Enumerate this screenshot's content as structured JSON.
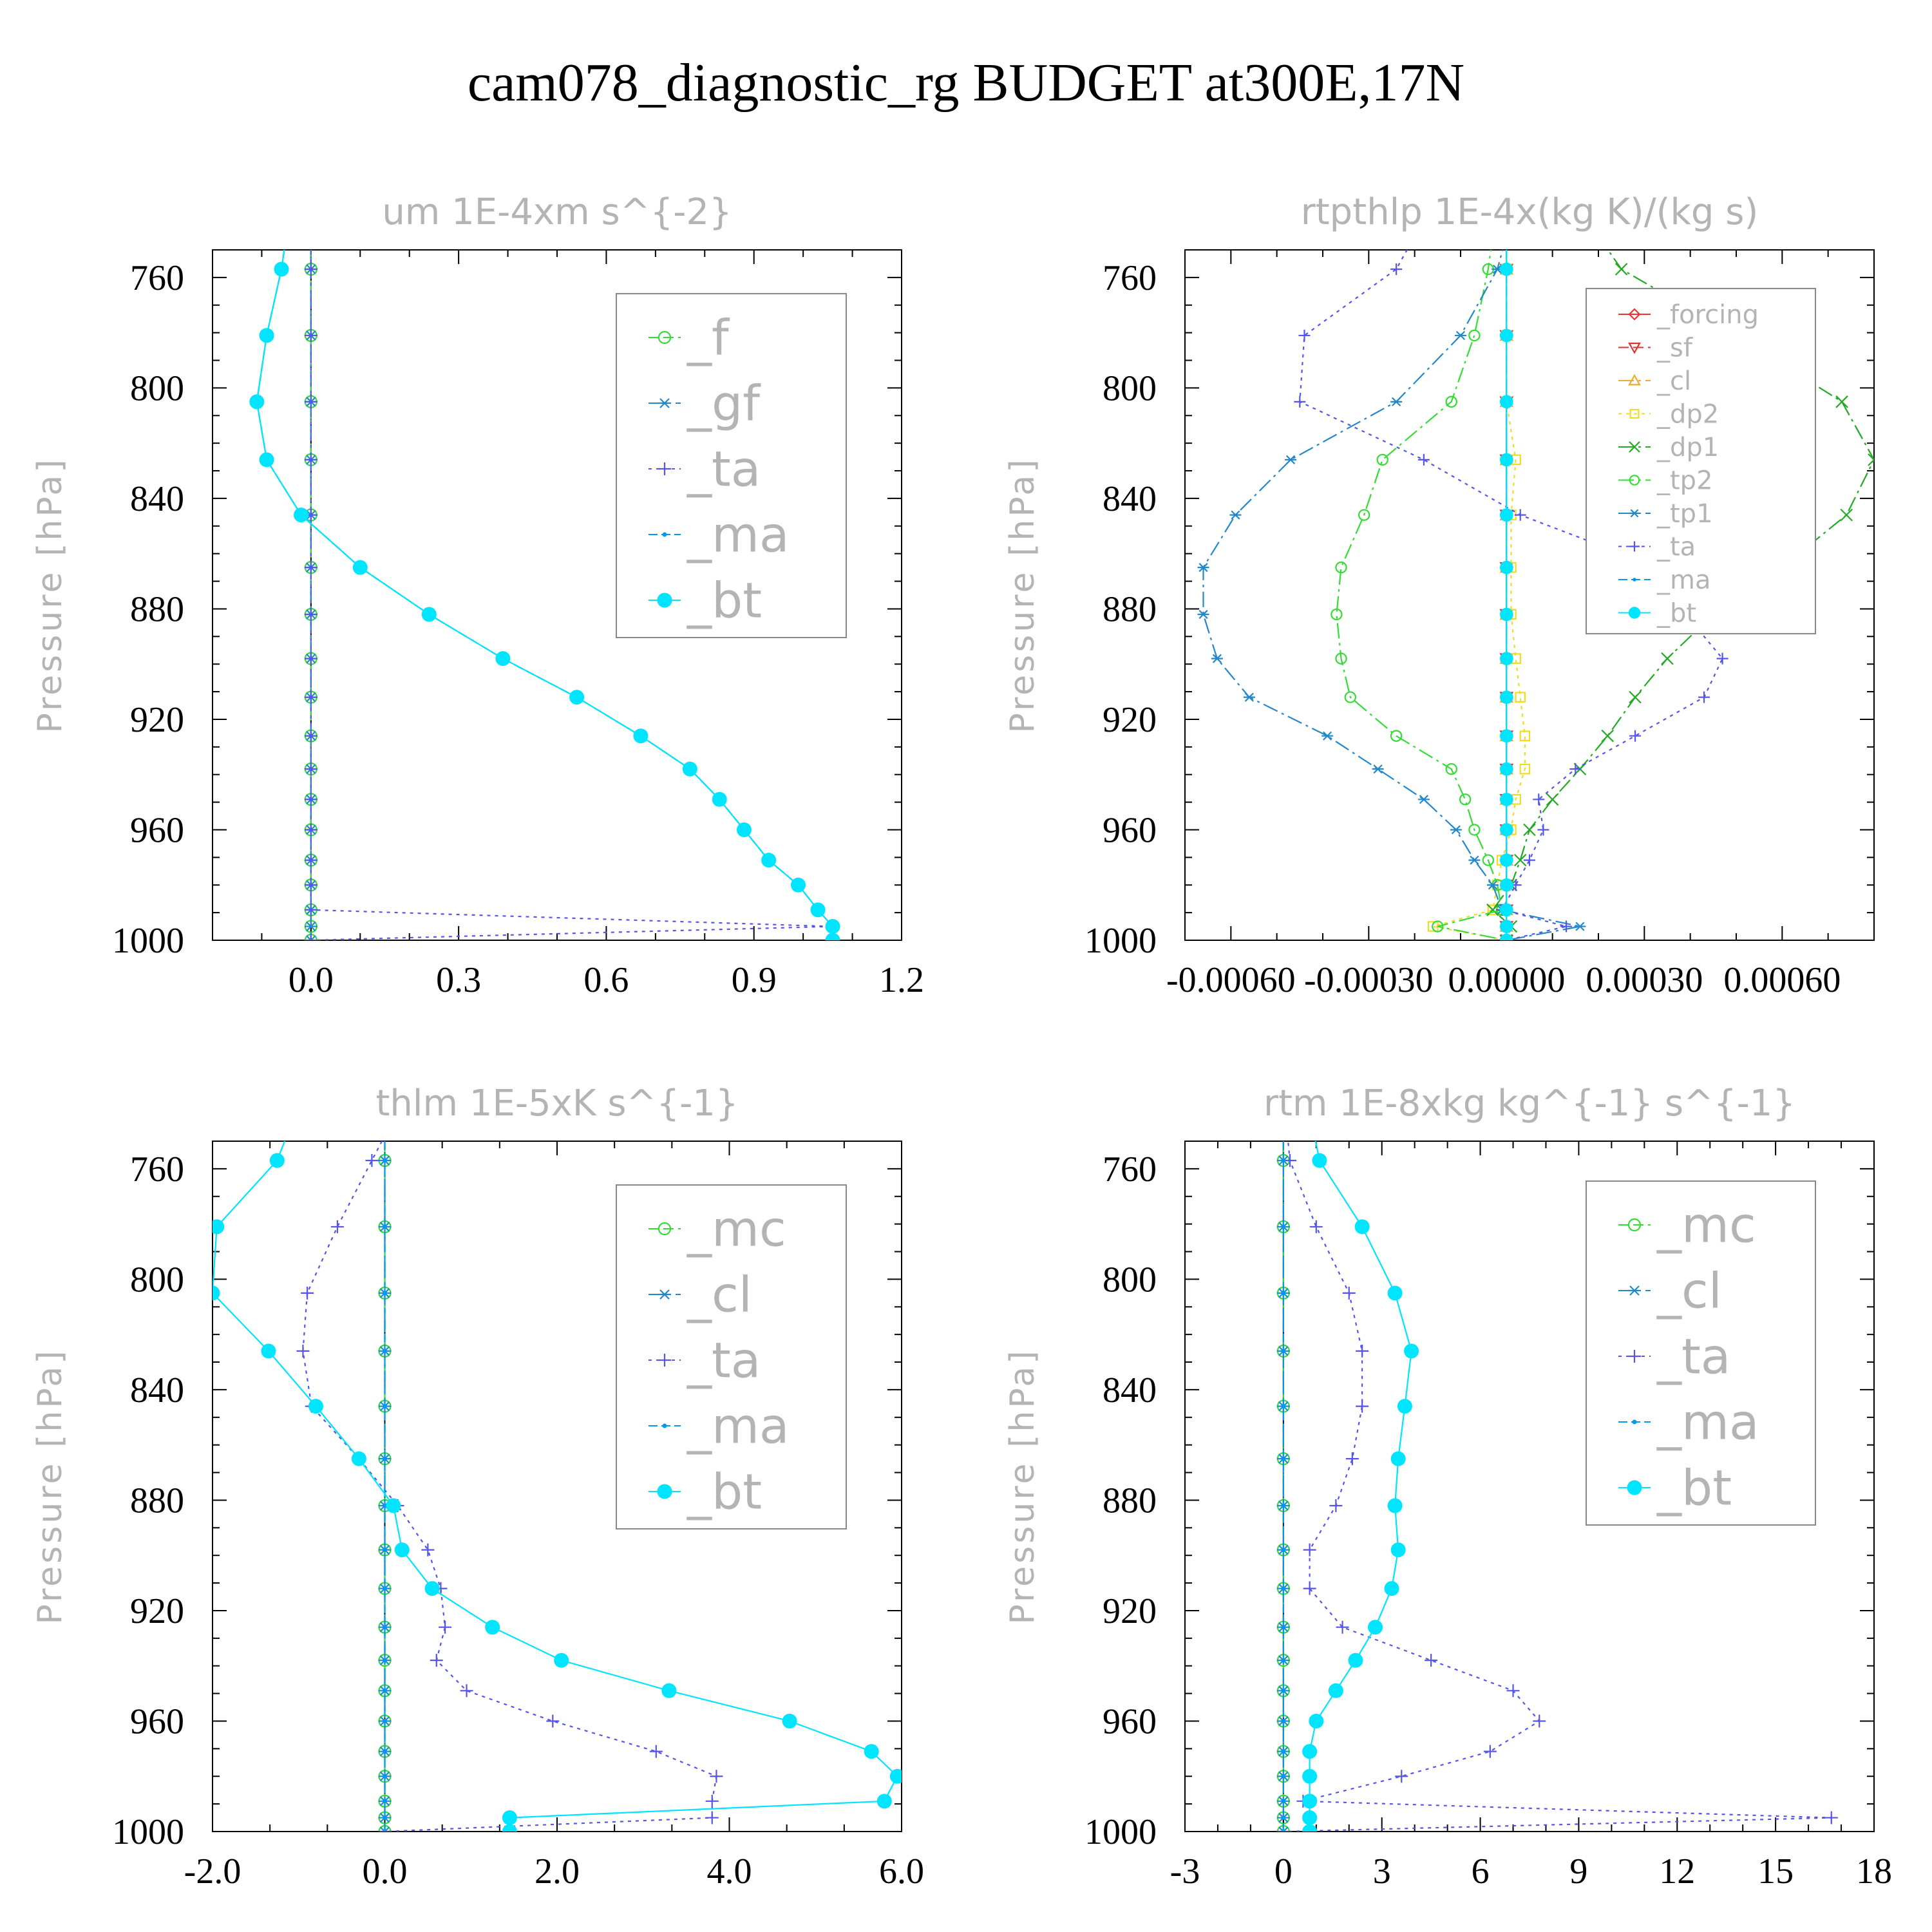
{
  "title": "cam078_diagnostic_rg  BUDGET at300E,17N",
  "chart_data": [
    {
      "type": "line",
      "title": "um  1E-4xm s^{-2}",
      "ylabel": "Pressure [hPa]",
      "xlim": [
        -0.2,
        1.2
      ],
      "xticks": [
        "0.0",
        "0.3",
        "0.6",
        "0.9",
        "1.2"
      ],
      "xtick_values": [
        0,
        0.3,
        0.6,
        0.9,
        1.2
      ],
      "ylim": [
        750,
        1000
      ],
      "yticks": [
        760,
        800,
        840,
        880,
        920,
        960,
        1000
      ],
      "legend": "right",
      "levels": [
        745,
        757,
        781,
        805,
        826,
        846,
        865,
        882,
        898,
        912,
        926,
        938,
        949,
        960,
        971,
        980,
        989,
        995,
        1000
      ],
      "series": [
        {
          "name": "_f",
          "color": "#33dd33",
          "marker": "circle-open",
          "dash": "16 7",
          "values": [
            0,
            0,
            0,
            0,
            0,
            0,
            0,
            0,
            0,
            0,
            0,
            0,
            0,
            0,
            0,
            0,
            0,
            0,
            0
          ]
        },
        {
          "name": "_gf",
          "color": "#2288cc",
          "marker": "asterisk",
          "dash": "24 7 4 7",
          "values": [
            0,
            0,
            0,
            0,
            0,
            0,
            0,
            0,
            0,
            0,
            0,
            0,
            0,
            0,
            0,
            0,
            0,
            0,
            0
          ]
        },
        {
          "name": "_ta",
          "color": "#5555ee",
          "marker": "plus",
          "dash": "5 7",
          "values": [
            0,
            0,
            0,
            0,
            0,
            0,
            0,
            0,
            0,
            0,
            0,
            0,
            0,
            0,
            0,
            0,
            0,
            1.06,
            0
          ]
        },
        {
          "name": "_ma",
          "color": "#0099ee",
          "marker": "dot",
          "dash": "14 6",
          "values": [
            -0.05,
            -0.06,
            -0.09,
            -0.11,
            -0.09,
            -0.02,
            0.1,
            0.24,
            0.39,
            0.54,
            0.67,
            0.77,
            0.83,
            0.88,
            0.93,
            0.99,
            1.03,
            1.06,
            1.06
          ]
        },
        {
          "name": "_bt",
          "color": "#00e5ff",
          "marker": "filled-circle",
          "dash": "",
          "values": [
            -0.05,
            -0.06,
            -0.09,
            -0.11,
            -0.09,
            -0.02,
            0.1,
            0.24,
            0.39,
            0.54,
            0.67,
            0.77,
            0.83,
            0.88,
            0.93,
            0.99,
            1.03,
            1.06,
            1.06
          ]
        }
      ]
    },
    {
      "type": "line",
      "title": "rtpthlp  1E-4x(kg K)/(kg s)",
      "ylabel": "Pressure [hPa]",
      "xlim": [
        -0.0007,
        0.0008
      ],
      "xticks": [
        "-0.00060",
        "-0.00030",
        "0.00000",
        "0.00030",
        "0.00060"
      ],
      "xtick_values": [
        -0.0006,
        -0.0003,
        0,
        0.0003,
        0.0006
      ],
      "ylim": [
        750,
        1000
      ],
      "yticks": [
        760,
        800,
        840,
        880,
        920,
        960,
        1000
      ],
      "legend": "top-right",
      "levels": [
        745,
        757,
        781,
        805,
        826,
        846,
        865,
        882,
        898,
        912,
        926,
        938,
        949,
        960,
        971,
        980,
        989,
        995,
        1000
      ],
      "series": [
        {
          "name": "_forcing",
          "color": "#ee3333",
          "marker": "diamond",
          "dash": "",
          "values": [
            0,
            0,
            0,
            0,
            0,
            0,
            0,
            0,
            0,
            0,
            0,
            0,
            0,
            0,
            0,
            0,
            0,
            0,
            0
          ]
        },
        {
          "name": "_sf",
          "color": "#dd3333",
          "marker": "triangle-down",
          "dash": "16 7",
          "values": [
            0,
            0,
            0,
            0,
            0,
            0,
            0,
            0,
            0,
            0,
            0,
            0,
            0,
            0,
            0,
            0,
            0,
            0,
            0
          ]
        },
        {
          "name": "_cl",
          "color": "#eeaa33",
          "marker": "triangle-up",
          "dash": "24 7 4 7",
          "values": [
            0,
            0,
            0,
            0,
            0,
            0,
            0,
            0,
            0,
            0,
            0,
            0,
            0,
            0,
            0,
            0,
            0,
            0,
            0
          ]
        },
        {
          "name": "_dp2",
          "color": "#eedd22",
          "marker": "square",
          "dash": "5 7",
          "values": [
            0,
            0,
            0,
            0,
            2e-05,
            1e-05,
            1e-05,
            1e-05,
            2e-05,
            3e-05,
            4e-05,
            4e-05,
            2e-05,
            1e-05,
            -1e-05,
            -2e-05,
            -3e-05,
            -0.00016,
            0
          ]
        },
        {
          "name": "_dp1",
          "color": "#22aa22",
          "marker": "cross",
          "dash": "24 7 4 7",
          "values": [
            0.0002,
            0.00025,
            0.0005,
            0.00073,
            0.0008,
            0.00074,
            0.0006,
            0.00045,
            0.00035,
            0.00028,
            0.00022,
            0.00016,
            0.0001,
            5e-05,
            3e-05,
            1e-05,
            -3e-05,
            1e-05,
            0
          ]
        },
        {
          "name": "_tp2",
          "color": "#33dd33",
          "marker": "circle-open",
          "dash": "24 7 4 7",
          "values": [
            -3e-05,
            -4e-05,
            -7e-05,
            -0.00012,
            -0.00027,
            -0.00031,
            -0.00036,
            -0.00037,
            -0.00036,
            -0.00034,
            -0.00024,
            -0.00012,
            -9e-05,
            -7e-05,
            -4e-05,
            -2e-05,
            -1e-05,
            -0.00015,
            0
          ]
        },
        {
          "name": "_tp1",
          "color": "#2288cc",
          "marker": "asterisk",
          "dash": "24 7 4 7",
          "values": [
            0,
            -2e-05,
            -0.0001,
            -0.00024,
            -0.00047,
            -0.00059,
            -0.00066,
            -0.00066,
            -0.00063,
            -0.00056,
            -0.00039,
            -0.00028,
            -0.00018,
            -0.00011,
            -7e-05,
            -3e-05,
            -1e-05,
            0.00016,
            0
          ]
        },
        {
          "name": "_ta",
          "color": "#5555ee",
          "marker": "plus",
          "dash": "5 7",
          "values": [
            -0.0002,
            -0.00024,
            -0.00044,
            -0.00045,
            -0.00018,
            3e-05,
            0.00033,
            0.00039,
            0.00047,
            0.00043,
            0.00028,
            0.00015,
            7e-05,
            8e-05,
            5e-05,
            2e-05,
            -1e-05,
            0.00013,
            0
          ]
        },
        {
          "name": "_ma",
          "color": "#0099ee",
          "marker": "dot",
          "dash": "14 6",
          "values": [
            0,
            0,
            0,
            0,
            0,
            0,
            0,
            0,
            0,
            0,
            0,
            0,
            0,
            0,
            0,
            0,
            0,
            0,
            0
          ]
        },
        {
          "name": "_bt",
          "color": "#00e5ff",
          "marker": "filled-circle",
          "dash": "",
          "values": [
            0,
            0,
            0,
            0,
            0,
            0,
            0,
            0,
            0,
            0,
            0,
            0,
            0,
            0,
            0,
            0,
            0,
            0,
            0
          ]
        }
      ]
    },
    {
      "type": "line",
      "title": "thlm  1E-5xK s^{-1}",
      "ylabel": "Pressure [hPa]",
      "xlim": [
        -2.0,
        6.0
      ],
      "xticks": [
        "-2.0",
        "0.0",
        "2.0",
        "4.0",
        "6.0"
      ],
      "xtick_values": [
        -2,
        0,
        2,
        4,
        6
      ],
      "ylim": [
        750,
        1000
      ],
      "yticks": [
        760,
        800,
        840,
        880,
        920,
        960,
        1000
      ],
      "legend": "right",
      "levels": [
        745,
        757,
        781,
        805,
        826,
        846,
        865,
        882,
        898,
        912,
        926,
        938,
        949,
        960,
        971,
        980,
        989,
        995,
        1000
      ],
      "series": [
        {
          "name": "_mc",
          "color": "#33dd33",
          "marker": "circle-open",
          "dash": "16 7",
          "values": [
            0,
            0,
            0,
            0,
            0,
            0,
            0,
            0,
            0,
            0,
            0,
            0,
            0,
            0,
            0,
            0,
            0,
            0,
            0
          ]
        },
        {
          "name": "_cl",
          "color": "#2288cc",
          "marker": "asterisk",
          "dash": "24 7 4 7",
          "values": [
            0,
            0,
            0,
            0,
            0,
            0,
            0,
            0,
            0,
            0,
            0,
            0,
            0,
            0,
            0,
            0,
            0,
            0,
            0
          ]
        },
        {
          "name": "_ta",
          "color": "#5555ee",
          "marker": "plus",
          "dash": "5 7",
          "values": [
            0.05,
            -0.15,
            -0.55,
            -0.9,
            -0.95,
            -0.85,
            -0.3,
            0.15,
            0.5,
            0.65,
            0.7,
            0.6,
            0.95,
            1.95,
            3.15,
            3.85,
            3.8,
            3.8,
            0
          ]
        },
        {
          "name": "_ma",
          "color": "#0099ee",
          "marker": "dot",
          "dash": "14 6",
          "values": [
            0,
            0,
            0,
            0,
            0,
            0,
            0,
            0,
            0,
            0,
            0,
            0,
            0,
            0,
            0,
            0,
            0,
            0,
            0
          ]
        },
        {
          "name": "_bt",
          "color": "#00e5ff",
          "marker": "filled-circle",
          "dash": "",
          "values": [
            -1.1,
            -1.25,
            -1.95,
            -2.0,
            -1.35,
            -0.8,
            -0.3,
            0.1,
            0.2,
            0.55,
            1.25,
            2.05,
            3.3,
            4.7,
            5.65,
            5.95,
            5.8,
            1.45,
            1.45
          ]
        }
      ]
    },
    {
      "type": "line",
      "title": "rtm  1E-8xkg kg^{-1} s^{-1}",
      "ylabel": "Pressure [hPa]",
      "xlim": [
        -3,
        18
      ],
      "xticks": [
        "-3",
        "0",
        "3",
        "6",
        "9",
        "12",
        "15",
        "18"
      ],
      "xtick_values": [
        -3,
        0,
        3,
        6,
        9,
        12,
        15,
        18
      ],
      "ylim": [
        750,
        1000
      ],
      "yticks": [
        760,
        800,
        840,
        880,
        920,
        960,
        1000
      ],
      "legend": "right",
      "levels": [
        745,
        757,
        781,
        805,
        826,
        846,
        865,
        882,
        898,
        912,
        926,
        938,
        949,
        960,
        971,
        980,
        989,
        995,
        1000
      ],
      "series": [
        {
          "name": "_mc",
          "color": "#33dd33",
          "marker": "circle-open",
          "dash": "16 7",
          "values": [
            0,
            0,
            0,
            0,
            0,
            0,
            0,
            0,
            0,
            0,
            0,
            0,
            0,
            0,
            0,
            0,
            0,
            0,
            0
          ]
        },
        {
          "name": "_cl",
          "color": "#2288cc",
          "marker": "asterisk",
          "dash": "24 7 4 7",
          "values": [
            0,
            0,
            0,
            0,
            0,
            0,
            0,
            0,
            0,
            0,
            0,
            0,
            0,
            0,
            0,
            0,
            0,
            0,
            0
          ]
        },
        {
          "name": "_ta",
          "color": "#5555ee",
          "marker": "plus",
          "dash": "5 7",
          "values": [
            0.1,
            0.2,
            1.0,
            2.0,
            2.4,
            2.4,
            2.1,
            1.6,
            0.8,
            0.8,
            1.8,
            4.5,
            7.0,
            7.8,
            6.3,
            3.6,
            0.6,
            16.7,
            0
          ]
        },
        {
          "name": "_ma",
          "color": "#0099ee",
          "marker": "dot",
          "dash": "14 6",
          "values": [
            0,
            0,
            0,
            0,
            0,
            0,
            0,
            0,
            0,
            0,
            0,
            0,
            0,
            0,
            0,
            0,
            0,
            0,
            0
          ]
        },
        {
          "name": "_bt",
          "color": "#00e5ff",
          "marker": "filled-circle",
          "dash": "",
          "values": [
            0.9,
            1.1,
            2.4,
            3.4,
            3.9,
            3.7,
            3.5,
            3.4,
            3.5,
            3.3,
            2.8,
            2.2,
            1.6,
            1.0,
            0.8,
            0.8,
            0.8,
            0.8,
            0.8
          ]
        }
      ]
    }
  ]
}
